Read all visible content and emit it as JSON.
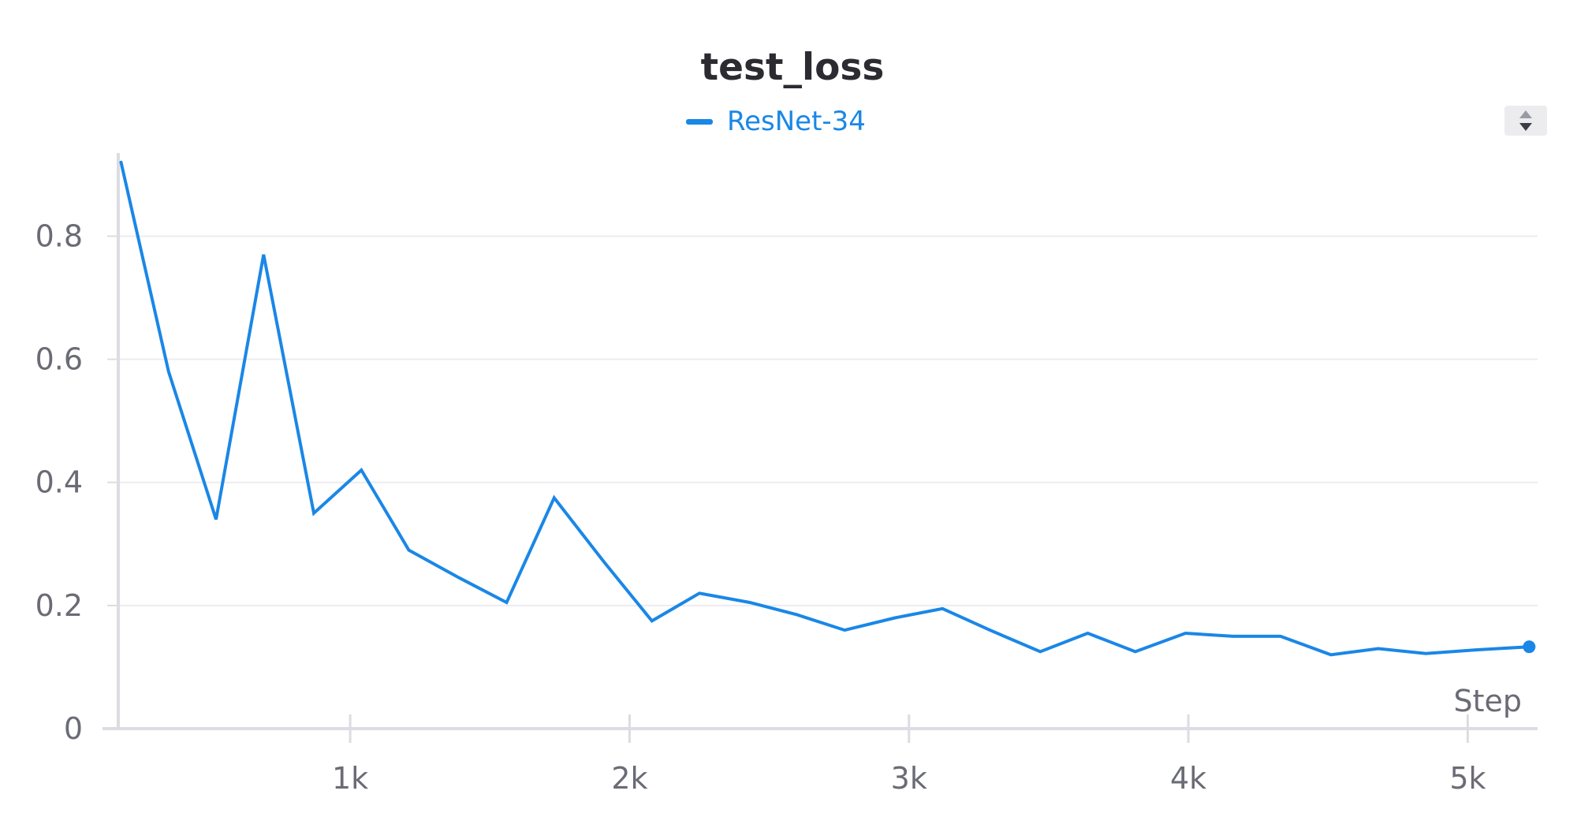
{
  "colors": {
    "series": "#1a87e6",
    "title": "#2b2b31",
    "axis_text": "#6b6b76",
    "grid": "#ececf0",
    "axis_line": "#dcdce3"
  },
  "legend": {
    "scroll_icon": "up-down-arrows"
  },
  "chart_data": {
    "type": "line",
    "title": "test_loss",
    "xlabel": "Step",
    "ylabel": "",
    "xlim": [
      170,
      5250
    ],
    "ylim": [
      0,
      0.93
    ],
    "grid": true,
    "legend_position": "top-center",
    "x_ticks": [
      {
        "value": 1000,
        "label": "1k"
      },
      {
        "value": 2000,
        "label": "2k"
      },
      {
        "value": 3000,
        "label": "3k"
      },
      {
        "value": 4000,
        "label": "4k"
      },
      {
        "value": 5000,
        "label": "5k"
      }
    ],
    "y_ticks": [
      {
        "value": 0,
        "label": "0"
      },
      {
        "value": 0.2,
        "label": "0.2"
      },
      {
        "value": 0.4,
        "label": "0.4"
      },
      {
        "value": 0.6,
        "label": "0.6"
      },
      {
        "value": 0.8,
        "label": "0.8"
      }
    ],
    "series": [
      {
        "name": "ResNet-34",
        "x": [
          180,
          350,
          520,
          690,
          870,
          1040,
          1210,
          1390,
          1560,
          1730,
          1910,
          2080,
          2250,
          2430,
          2600,
          2770,
          2950,
          3120,
          3290,
          3470,
          3640,
          3810,
          3990,
          4160,
          4330,
          4510,
          4680,
          4850,
          5030,
          5220
        ],
        "values": [
          0.92,
          0.58,
          0.34,
          0.77,
          0.35,
          0.42,
          0.29,
          0.245,
          0.205,
          0.375,
          0.27,
          0.175,
          0.22,
          0.205,
          0.185,
          0.16,
          0.18,
          0.195,
          0.16,
          0.125,
          0.155,
          0.125,
          0.155,
          0.15,
          0.15,
          0.12,
          0.13,
          0.122,
          0.128,
          0.133
        ]
      }
    ]
  }
}
